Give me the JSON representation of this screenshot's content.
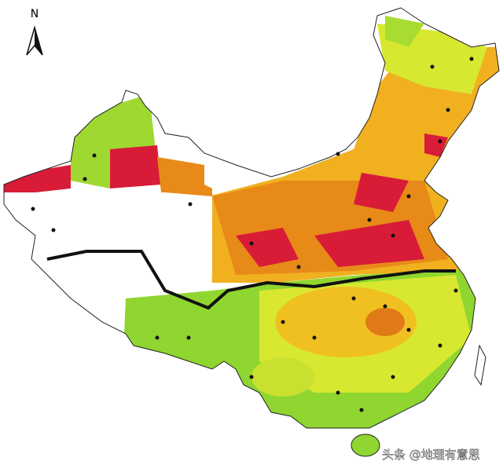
{
  "map": {
    "north_label": "N",
    "watermark": "头条 @地理有意思"
  }
}
